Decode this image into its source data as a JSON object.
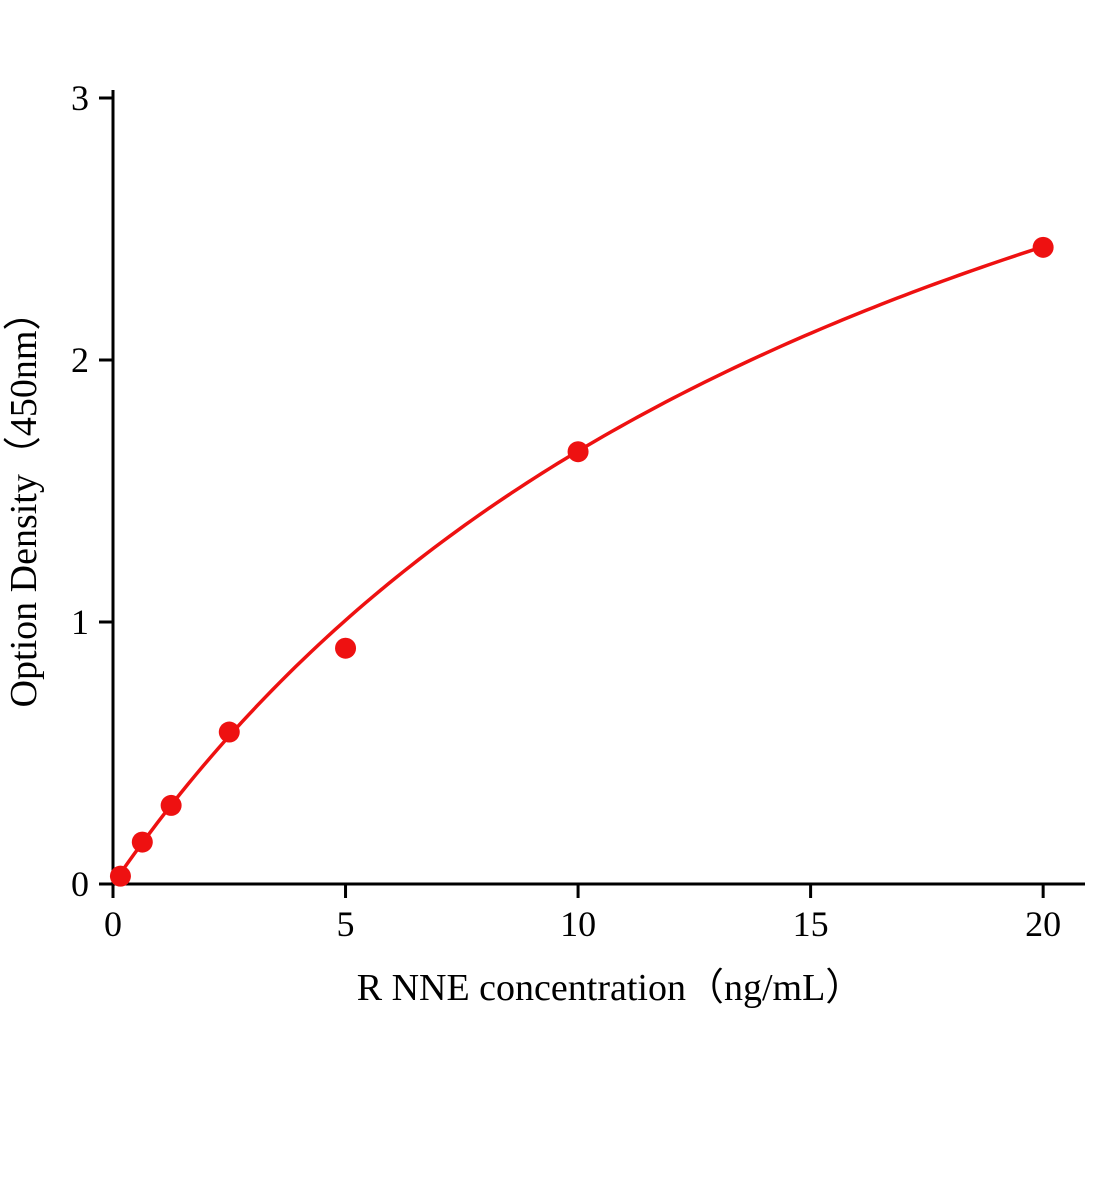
{
  "chart_data": {
    "type": "scatter",
    "title": "",
    "xlabel": "R NNE concentration（ng/mL）",
    "ylabel": "Option Density（450nm）",
    "x": [
      0.16,
      0.63,
      1.25,
      2.5,
      5,
      10,
      20
    ],
    "y": [
      0.03,
      0.16,
      0.3,
      0.58,
      0.9,
      1.65,
      2.43
    ],
    "xlim": [
      0,
      20.9
    ],
    "ylim": [
      0,
      3
    ],
    "xticks": [
      "0",
      "5",
      "10",
      "15",
      "20"
    ],
    "xtick_values": [
      0,
      5,
      10,
      15,
      20
    ],
    "yticks": [
      "0",
      "1",
      "2",
      "3"
    ],
    "ytick_values": [
      0,
      1,
      2,
      3
    ],
    "grid": false,
    "legend": "none",
    "point_color": "#ee1111",
    "line_color": "#ee1111",
    "axis_color": "#000000",
    "fit": {
      "type": "saturation",
      "vmax": 4.61,
      "k": 17.9,
      "x_start": 0.12,
      "x_end": 20
    }
  }
}
